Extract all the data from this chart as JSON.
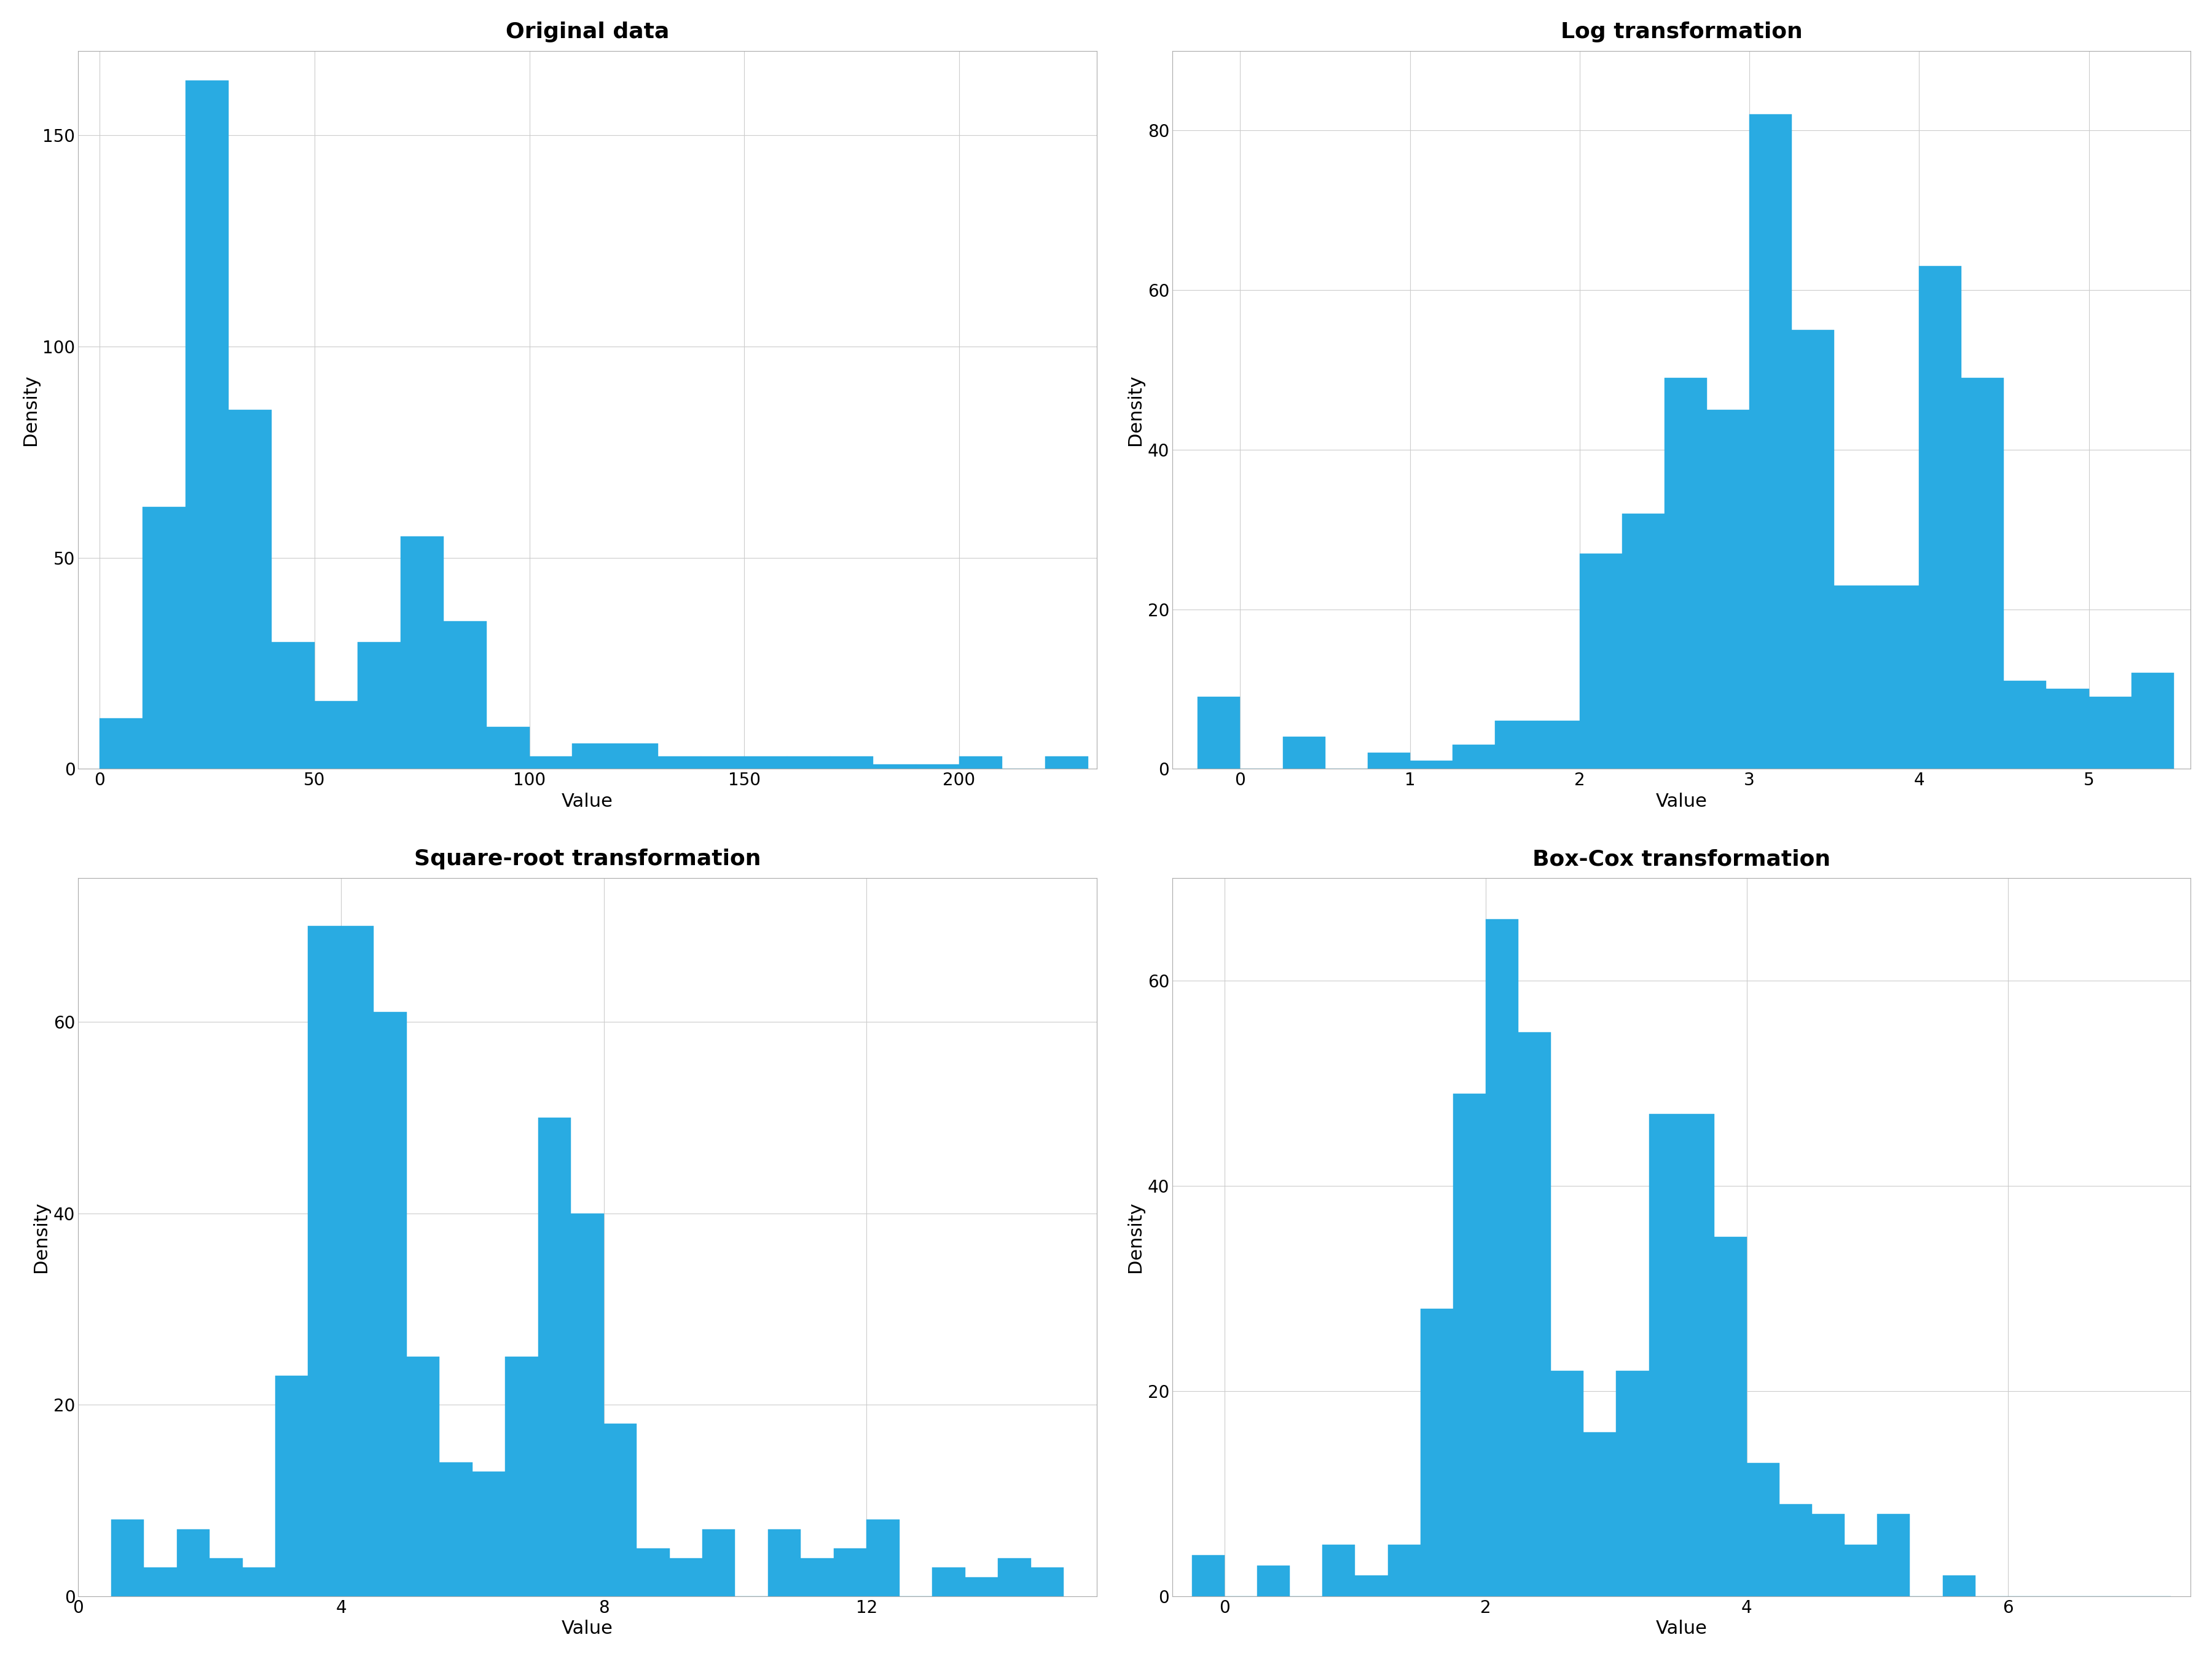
{
  "bar_color": "#29ABE2",
  "background_color": "#ffffff",
  "grid_color": "#cccccc",
  "title_fontsize": 26,
  "axis_label_fontsize": 22,
  "tick_fontsize": 20,
  "plot1": {
    "title": "Original data",
    "xlabel": "Value",
    "ylabel": "Density",
    "bin_edges": [
      0,
      10,
      20,
      30,
      40,
      50,
      60,
      70,
      80,
      90,
      100,
      110,
      120,
      130,
      140,
      150,
      160,
      170,
      180,
      190,
      200,
      210,
      220,
      230
    ],
    "heights": [
      12,
      62,
      163,
      85,
      30,
      16,
      30,
      55,
      35,
      10,
      3,
      6,
      6,
      3,
      3,
      3,
      3,
      3,
      1,
      1,
      3,
      0,
      3
    ],
    "xlim": [
      -5,
      232
    ],
    "ylim": [
      0,
      170
    ],
    "xticks": [
      0,
      50,
      100,
      150,
      200
    ],
    "yticks": [
      0,
      50,
      100,
      150
    ]
  },
  "plot2": {
    "title": "Log transformation",
    "xlabel": "Value",
    "ylabel": "Density",
    "bin_edges": [
      -0.25,
      0.0,
      0.25,
      0.5,
      0.75,
      1.0,
      1.25,
      1.5,
      1.75,
      2.0,
      2.25,
      2.5,
      2.75,
      3.0,
      3.25,
      3.5,
      3.75,
      4.0,
      4.25,
      4.5,
      4.75,
      5.0,
      5.25,
      5.5
    ],
    "heights": [
      9,
      0,
      4,
      0,
      2,
      1,
      3,
      6,
      6,
      27,
      32,
      49,
      45,
      82,
      55,
      23,
      23,
      63,
      49,
      11,
      10,
      9,
      12
    ],
    "xlim": [
      -0.4,
      5.6
    ],
    "ylim": [
      0,
      90
    ],
    "xticks": [
      0,
      1,
      2,
      3,
      4,
      5
    ],
    "yticks": [
      0,
      20,
      40,
      60,
      80
    ]
  },
  "plot3": {
    "title": "Square-root transformation",
    "xlabel": "Value",
    "ylabel": "Density",
    "bin_edges": [
      0.5,
      1.0,
      1.5,
      2.0,
      2.5,
      3.0,
      3.5,
      4.0,
      4.5,
      5.0,
      5.5,
      6.0,
      6.5,
      7.0,
      7.5,
      8.0,
      8.5,
      9.0,
      9.5,
      10.0,
      10.5,
      11.0,
      11.5,
      12.0,
      12.5,
      13.0,
      13.5,
      14.0,
      14.5,
      15.0
    ],
    "heights": [
      8,
      3,
      7,
      4,
      3,
      23,
      70,
      70,
      61,
      25,
      14,
      13,
      25,
      50,
      40,
      18,
      5,
      4,
      7,
      0,
      7,
      4,
      5,
      8,
      0,
      3,
      2,
      4,
      3
    ],
    "xlim": [
      0,
      15.5
    ],
    "ylim": [
      0,
      75
    ],
    "xticks": [
      0,
      4,
      8,
      12
    ],
    "yticks": [
      0,
      20,
      40,
      60
    ]
  },
  "plot4": {
    "title": "Box-Cox transformation",
    "xlabel": "Value",
    "ylabel": "Density",
    "bin_edges": [
      -0.25,
      0.0,
      0.25,
      0.5,
      0.75,
      1.0,
      1.25,
      1.5,
      1.75,
      2.0,
      2.25,
      2.5,
      2.75,
      3.0,
      3.25,
      3.5,
      3.75,
      4.0,
      4.25,
      4.5,
      4.75,
      5.0,
      5.25,
      5.5,
      5.75,
      6.0,
      6.25,
      6.5,
      6.75,
      7.0,
      7.25
    ],
    "heights": [
      4,
      0,
      3,
      0,
      5,
      2,
      5,
      28,
      49,
      66,
      55,
      22,
      16,
      22,
      47,
      47,
      35,
      13,
      9,
      8,
      5,
      8,
      0,
      2,
      0,
      0,
      0,
      0,
      0,
      0
    ],
    "xlim": [
      -0.4,
      7.4
    ],
    "ylim": [
      0,
      70
    ],
    "xticks": [
      0,
      2,
      4,
      6
    ],
    "yticks": [
      0,
      20,
      40,
      60
    ]
  }
}
